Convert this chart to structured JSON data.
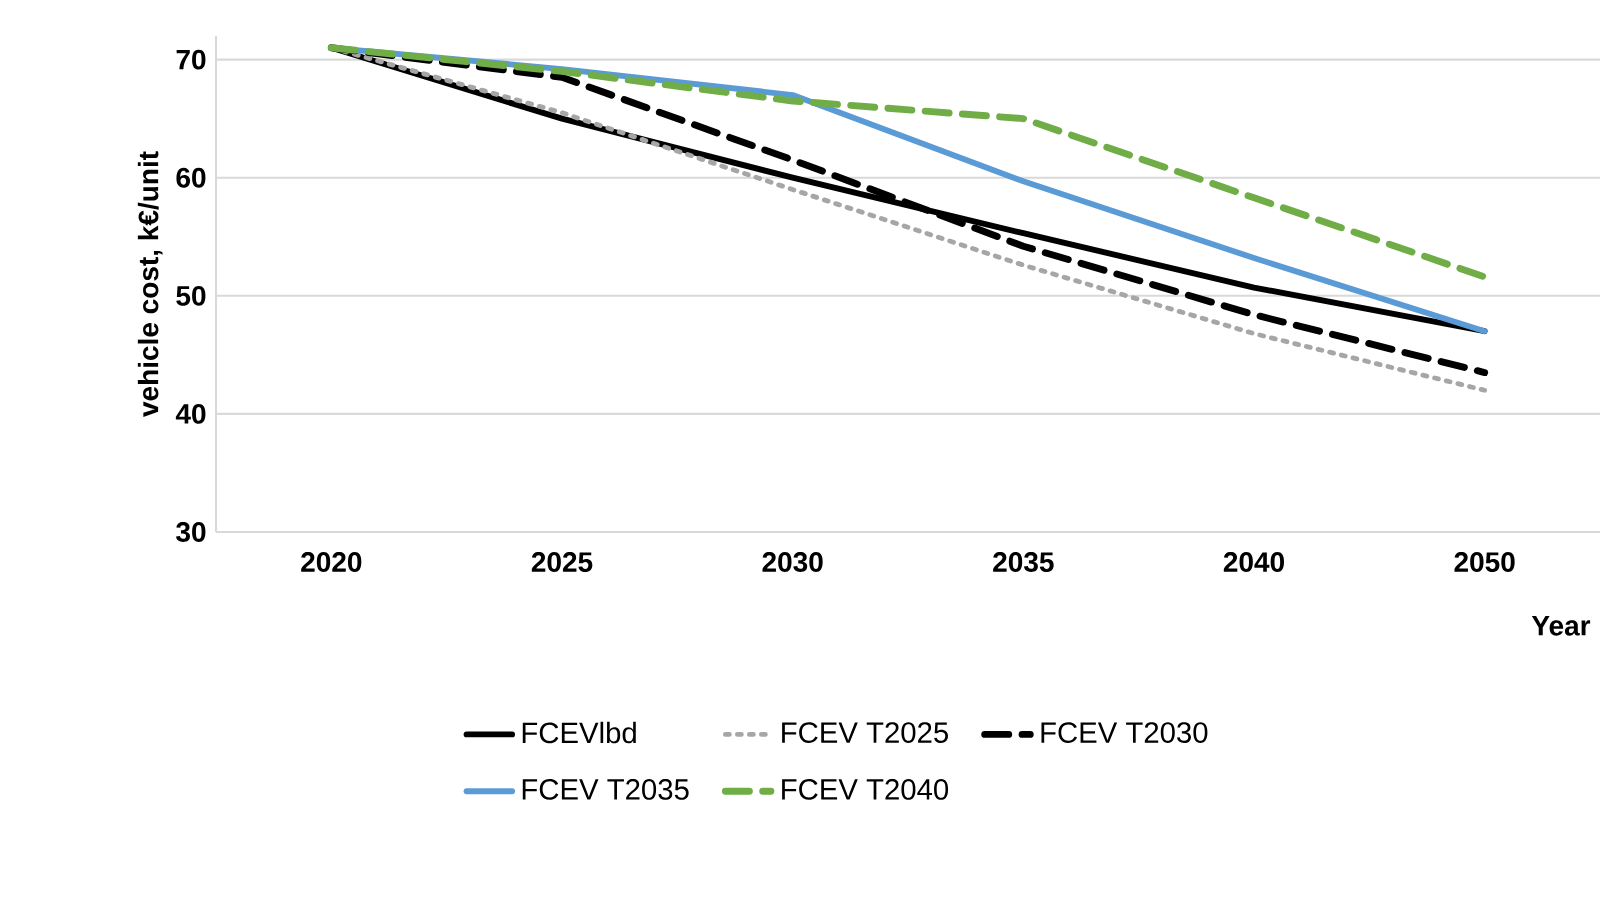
{
  "chart_data": {
    "type": "line",
    "xlabel": "Year",
    "ylabel": "vehicle cost, k€/unit",
    "categories": [
      "2020",
      "2025",
      "2030",
      "2035",
      "2040",
      "2050"
    ],
    "ylim": [
      30,
      72
    ],
    "yticks": [
      30,
      40,
      50,
      60,
      70
    ],
    "grid": "y",
    "legend": "bottom",
    "marker": "none",
    "series": [
      {
        "name": "FCEVlbd",
        "color": "#000000",
        "line_style": "solid",
        "values": [
          71,
          65,
          60,
          55.3,
          50.7,
          47
        ]
      },
      {
        "name": "FCEV T2025",
        "color": "#a6a6a6",
        "line_style": "dotted",
        "values": [
          71,
          65.5,
          59,
          52.6,
          46.8,
          42
        ]
      },
      {
        "name": "FCEV T2030",
        "color": "#000000",
        "line_style": "dashed",
        "values": [
          71,
          68.5,
          61.5,
          54.2,
          48.4,
          43.5
        ]
      },
      {
        "name": "FCEV T2035",
        "color": "#5b9bd5",
        "line_style": "solid",
        "values": [
          71,
          69.2,
          67,
          59.7,
          53.2,
          47
        ]
      },
      {
        "name": "FCEV T2040",
        "color": "#70ad47",
        "line_style": "dashed",
        "values": [
          71,
          69,
          66.5,
          65,
          58.3,
          51.6
        ]
      }
    ]
  }
}
